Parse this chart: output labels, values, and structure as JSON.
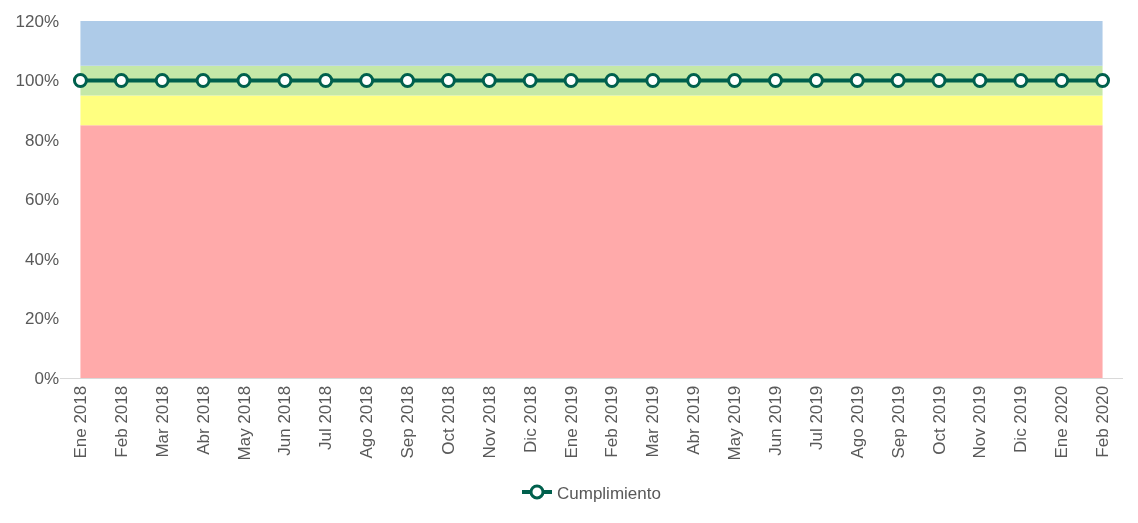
{
  "chart_data": {
    "type": "line",
    "categories": [
      "Ene 2018",
      "Feb 2018",
      "Mar 2018",
      "Abr 2018",
      "May 2018",
      "Jun 2018",
      "Jul 2018",
      "Ago 2018",
      "Sep 2018",
      "Oct 2018",
      "Nov 2018",
      "Dic 2018",
      "Ene 2019",
      "Feb 2019",
      "Mar 2019",
      "Abr 2019",
      "May 2019",
      "Jun 2019",
      "Jul 2019",
      "Ago 2019",
      "Sep 2019",
      "Oct 2019",
      "Nov 2019",
      "Dic 2019",
      "Ene 2020",
      "Feb 2020"
    ],
    "series": [
      {
        "name": "Cumplimiento",
        "color": "#00604d",
        "values": [
          100,
          100,
          100,
          100,
          100,
          100,
          100,
          100,
          100,
          100,
          100,
          100,
          100,
          100,
          100,
          100,
          100,
          100,
          100,
          100,
          100,
          100,
          100,
          100,
          100,
          100
        ]
      }
    ],
    "bands": [
      {
        "axis": "y",
        "from": 0,
        "to": 85,
        "color": "#ffaaaa"
      },
      {
        "axis": "y",
        "from": 85,
        "to": 95,
        "color": "#ffff80"
      },
      {
        "axis": "y",
        "from": 95,
        "to": 105,
        "color": "#c5e8a8"
      },
      {
        "axis": "y",
        "from": 105,
        "to": 120,
        "color": "#aecbe8"
      }
    ],
    "ylim": [
      0,
      120
    ],
    "yticks": [
      {
        "value": 0,
        "label": "0%"
      },
      {
        "value": 20,
        "label": "20%"
      },
      {
        "value": 40,
        "label": "40%"
      },
      {
        "value": 60,
        "label": "60%"
      },
      {
        "value": 80,
        "label": "80%"
      },
      {
        "value": 100,
        "label": "100%"
      },
      {
        "value": 120,
        "label": "120%"
      }
    ],
    "marker": "circle",
    "line_style": "solid",
    "legend": "bottom",
    "grid": false
  }
}
